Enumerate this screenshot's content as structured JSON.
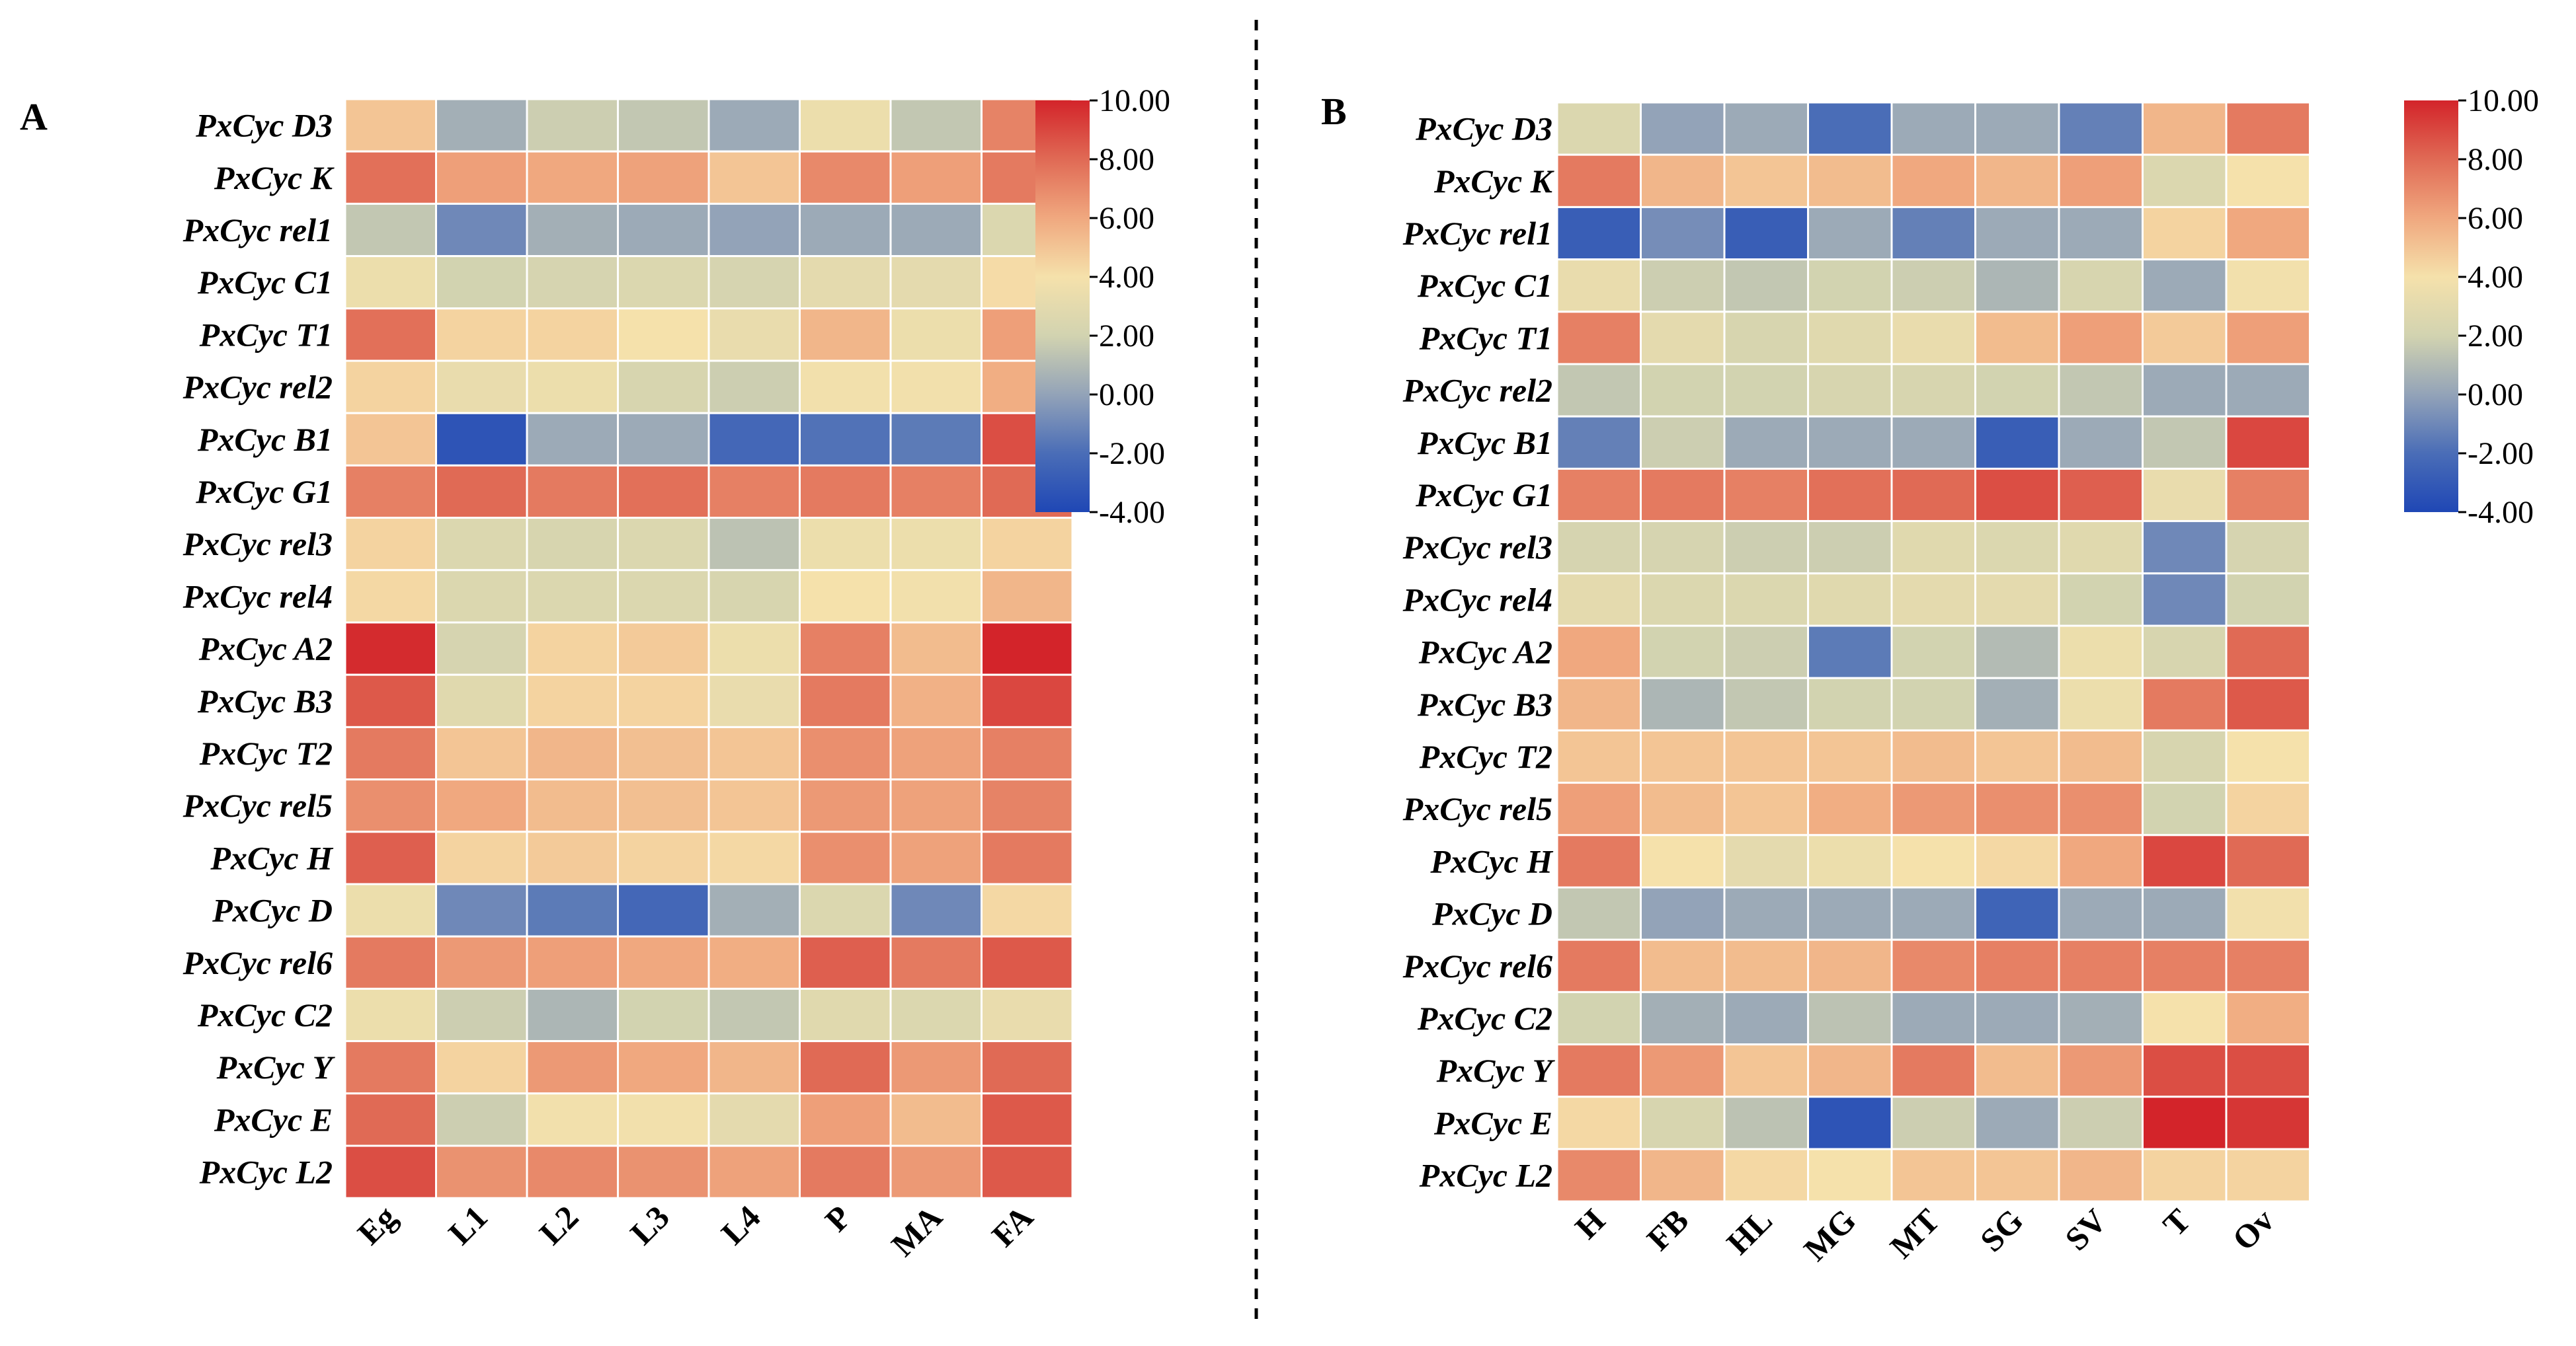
{
  "chart_data": [
    {
      "type": "heatmap",
      "panel": "A",
      "rows": [
        "PxCyc D3",
        "PxCyc K",
        "PxCyc rel1",
        "PxCyc C1",
        "PxCyc T1",
        "PxCyc rel2",
        "PxCyc B1",
        "PxCyc G1",
        "PxCyc rel3",
        "PxCyc rel4",
        "PxCyc A2",
        "PxCyc B3",
        "PxCyc T2",
        "PxCyc rel5",
        "PxCyc H",
        "PxCyc D",
        "PxCyc rel6",
        "PxCyc C2",
        "PxCyc Y",
        "PxCyc E",
        "PxCyc L2"
      ],
      "columns": [
        "Eg",
        "L1",
        "L2",
        "L3",
        "L4",
        "P",
        "MA",
        "FA"
      ],
      "values": [
        [
          5.0,
          0.5,
          1.8,
          1.5,
          0.3,
          3.5,
          1.5,
          7.2
        ],
        [
          7.8,
          6.3,
          6.0,
          6.2,
          5.0,
          7.0,
          6.3,
          7.5
        ],
        [
          1.5,
          -1.0,
          0.5,
          0.3,
          0.0,
          0.3,
          0.3,
          2.5
        ],
        [
          3.5,
          2.0,
          2.2,
          2.5,
          2.2,
          3.0,
          3.0,
          4.2
        ],
        [
          7.8,
          4.5,
          4.5,
          4.0,
          3.3,
          5.5,
          3.5,
          6.3
        ],
        [
          4.5,
          3.3,
          3.5,
          2.3,
          1.8,
          3.8,
          3.8,
          5.8
        ],
        [
          5.0,
          -3.3,
          0.3,
          0.3,
          -2.3,
          -1.8,
          -1.5,
          8.8
        ],
        [
          7.3,
          8.0,
          7.5,
          7.8,
          7.3,
          7.5,
          7.3,
          8.0
        ],
        [
          4.5,
          2.5,
          2.3,
          2.5,
          1.3,
          3.5,
          3.5,
          4.5
        ],
        [
          4.3,
          2.5,
          2.5,
          2.5,
          2.3,
          4.0,
          3.8,
          5.5
        ],
        [
          9.8,
          2.2,
          4.5,
          4.8,
          3.5,
          7.3,
          5.3,
          10.0
        ],
        [
          8.5,
          2.8,
          4.5,
          4.5,
          3.3,
          7.5,
          5.7,
          9.0
        ],
        [
          7.5,
          5.0,
          5.5,
          5.2,
          5.0,
          6.8,
          6.2,
          7.3
        ],
        [
          6.8,
          6.0,
          5.3,
          5.2,
          5.0,
          6.5,
          6.2,
          7.2
        ],
        [
          8.3,
          4.5,
          4.8,
          4.5,
          4.3,
          6.8,
          6.2,
          7.5
        ],
        [
          3.5,
          -1.0,
          -1.5,
          -2.3,
          0.5,
          2.5,
          -1.0,
          4.3
        ],
        [
          7.5,
          6.5,
          6.3,
          6.0,
          5.8,
          8.3,
          7.5,
          8.5
        ],
        [
          3.5,
          1.8,
          0.8,
          2.0,
          1.5,
          2.8,
          2.5,
          3.3
        ],
        [
          7.5,
          4.5,
          6.5,
          6.0,
          5.5,
          8.0,
          6.5,
          8.0
        ],
        [
          8.0,
          1.8,
          3.8,
          3.8,
          3.0,
          6.3,
          5.3,
          8.5
        ],
        [
          8.8,
          6.7,
          7.0,
          6.7,
          6.2,
          7.5,
          6.5,
          8.5
        ]
      ],
      "colorbar": {
        "min": -4,
        "max": 10,
        "ticks": [
          "10.00",
          "8.00",
          "6.00",
          "4.00",
          "2.00",
          "0.00",
          "-2.00",
          "-4.00"
        ]
      }
    },
    {
      "type": "heatmap",
      "panel": "B",
      "rows": [
        "PxCyc D3",
        "PxCyc K",
        "PxCyc rel1",
        "PxCyc C1",
        "PxCyc T1",
        "PxCyc rel2",
        "PxCyc B1",
        "PxCyc G1",
        "PxCyc rel3",
        "PxCyc rel4",
        "PxCyc A2",
        "PxCyc B3",
        "PxCyc T2",
        "PxCyc rel5",
        "PxCyc H",
        "PxCyc D",
        "PxCyc rel6",
        "PxCyc C2",
        "PxCyc Y",
        "PxCyc E",
        "PxCyc L2"
      ],
      "columns": [
        "H",
        "FB",
        "HL",
        "MG",
        "MT",
        "SG",
        "SV",
        "T",
        "Ov"
      ],
      "values": [
        [
          2.5,
          0.0,
          0.3,
          -2.0,
          0.3,
          0.3,
          -1.3,
          5.5,
          7.5
        ],
        [
          7.5,
          5.5,
          5.0,
          5.3,
          6.0,
          5.5,
          6.3,
          2.5,
          4.0
        ],
        [
          -2.8,
          -0.8,
          -2.8,
          0.3,
          -1.3,
          0.3,
          0.3,
          4.5,
          6.0
        ],
        [
          3.3,
          1.8,
          1.5,
          2.0,
          1.8,
          0.8,
          2.3,
          0.3,
          3.8
        ],
        [
          7.3,
          3.0,
          2.3,
          2.8,
          3.3,
          5.3,
          6.3,
          4.8,
          6.3
        ],
        [
          1.5,
          2.0,
          2.0,
          2.3,
          2.3,
          2.0,
          1.5,
          0.3,
          0.3
        ],
        [
          -1.3,
          1.8,
          0.3,
          0.3,
          0.3,
          -2.8,
          0.3,
          1.5,
          9.0
        ],
        [
          7.3,
          7.5,
          7.3,
          7.8,
          8.0,
          8.8,
          8.3,
          3.3,
          7.3
        ],
        [
          2.2,
          2.2,
          1.8,
          1.8,
          2.8,
          2.5,
          2.8,
          -1.0,
          2.2
        ],
        [
          3.0,
          2.5,
          2.5,
          2.8,
          3.0,
          3.0,
          2.0,
          -1.0,
          2.0
        ],
        [
          6.0,
          2.0,
          1.8,
          -1.5,
          2.0,
          1.0,
          3.5,
          2.3,
          8.0
        ],
        [
          5.5,
          0.8,
          1.5,
          2.0,
          2.0,
          0.5,
          3.5,
          7.5,
          8.5
        ],
        [
          5.0,
          5.0,
          5.0,
          5.0,
          5.3,
          5.0,
          5.3,
          2.3,
          4.0
        ],
        [
          6.3,
          5.3,
          5.0,
          5.8,
          6.5,
          6.8,
          6.8,
          2.0,
          4.5
        ],
        [
          7.5,
          4.0,
          3.0,
          3.5,
          4.0,
          4.3,
          6.0,
          9.0,
          8.0
        ],
        [
          1.5,
          0.0,
          0.3,
          0.3,
          0.3,
          -2.5,
          0.3,
          0.3,
          3.8
        ],
        [
          7.5,
          5.3,
          5.3,
          5.5,
          7.0,
          7.3,
          7.3,
          7.3,
          7.3
        ],
        [
          2.0,
          0.5,
          0.3,
          1.3,
          0.3,
          0.3,
          0.5,
          4.0,
          5.8
        ],
        [
          7.5,
          6.5,
          5.0,
          5.5,
          7.5,
          5.3,
          6.5,
          8.8,
          8.8
        ],
        [
          4.3,
          2.3,
          1.3,
          -3.3,
          1.8,
          0.3,
          1.8,
          10.0,
          9.5
        ],
        [
          7.0,
          5.5,
          4.3,
          4.0,
          5.0,
          5.0,
          5.5,
          4.5,
          4.5
        ]
      ],
      "colorbar": {
        "min": -4,
        "max": 10,
        "ticks": [
          "10.00",
          "8.00",
          "6.00",
          "4.00",
          "2.00",
          "0.00",
          "-2.00",
          "-4.00"
        ]
      }
    }
  ],
  "colors": {
    "stops": [
      {
        "v": -4,
        "c": "#1f47b5"
      },
      {
        "v": -2,
        "c": "#4a6db7"
      },
      {
        "v": 0,
        "c": "#93a3b8"
      },
      {
        "v": 2,
        "c": "#d2d3b0"
      },
      {
        "v": 4,
        "c": "#f5e1ab"
      },
      {
        "v": 6,
        "c": "#f0a87f"
      },
      {
        "v": 8,
        "c": "#e06a55"
      },
      {
        "v": 10,
        "c": "#d3242a"
      }
    ],
    "divider": "#000000",
    "cell_border": "#ffffff"
  }
}
